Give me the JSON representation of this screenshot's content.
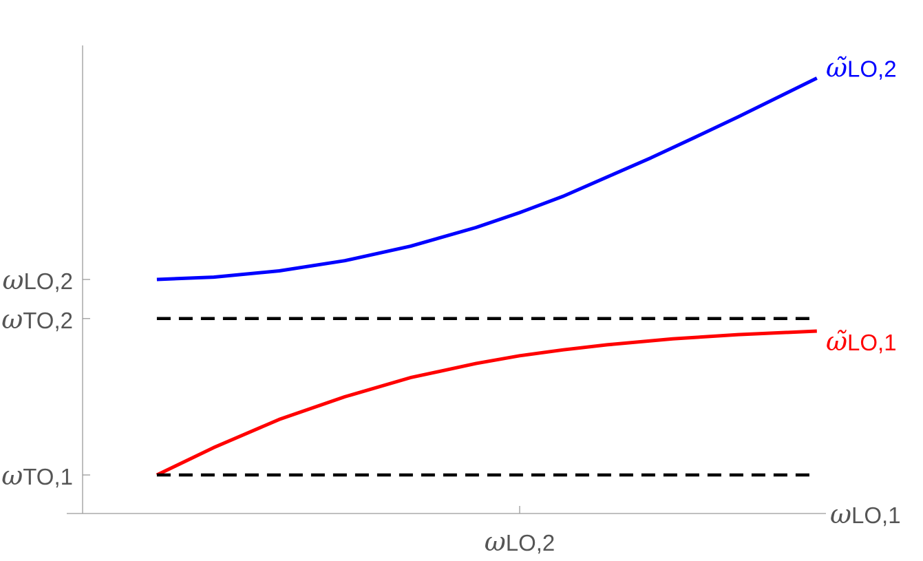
{
  "chart_data": {
    "type": "line",
    "title": "",
    "xlabel": "ωLO,1",
    "ylabel": "",
    "xlim": [
      0.0,
      1.71
    ],
    "ylim": [
      0.9,
      2.1
    ],
    "grid": false,
    "x_ticks": [
      {
        "value": 1.0,
        "omega": "ω",
        "sub": "LO,2"
      }
    ],
    "y_ticks": [
      {
        "value": 1.0,
        "omega": "ω",
        "sub": "TO,1"
      },
      {
        "value": 1.4,
        "omega": "ω",
        "sub": "TO,2"
      },
      {
        "value": 1.5,
        "omega": "ω",
        "sub": "LO,2"
      }
    ],
    "x_axis_label": {
      "omega": "ω",
      "sub": "LO,1"
    },
    "series": [
      {
        "name": "ω̃LO,2",
        "label_omega": "ω̃",
        "label_sub": "LO,2",
        "color": "#0000ff",
        "style": "solid",
        "x": [
          0.17,
          0.3,
          0.45,
          0.6,
          0.75,
          0.9,
          1.0,
          1.1,
          1.2,
          1.3,
          1.4,
          1.5,
          1.6,
          1.68
        ],
        "y": [
          1.5,
          1.506,
          1.522,
          1.548,
          1.585,
          1.633,
          1.671,
          1.713,
          1.762,
          1.811,
          1.863,
          1.916,
          1.971,
          2.015
        ]
      },
      {
        "name": "ω̃LO,1",
        "label_omega": "ω̃",
        "label_sub": "LO,1",
        "color": "#ff0000",
        "style": "solid",
        "x": [
          0.17,
          0.3,
          0.45,
          0.6,
          0.75,
          0.9,
          1.0,
          1.1,
          1.2,
          1.35,
          1.5,
          1.68
        ],
        "y": [
          1.0,
          1.07,
          1.142,
          1.2,
          1.249,
          1.285,
          1.305,
          1.32,
          1.333,
          1.348,
          1.359,
          1.368
        ]
      },
      {
        "name": "ωTO,2",
        "color": "#000000",
        "style": "dashed",
        "x": [
          0.17,
          1.68
        ],
        "y": [
          1.4,
          1.4
        ]
      },
      {
        "name": "ωTO,1",
        "color": "#000000",
        "style": "dashed",
        "x": [
          0.17,
          1.68
        ],
        "y": [
          1.0,
          1.0
        ]
      }
    ]
  }
}
